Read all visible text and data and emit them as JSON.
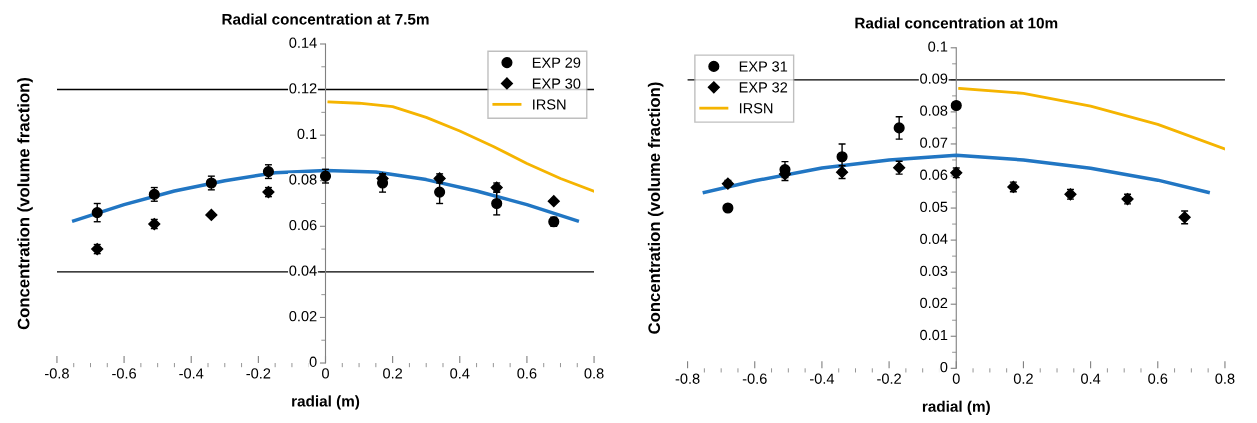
{
  "chart_data": [
    {
      "type": "scatter",
      "title": "Radial concentration at 7.5m",
      "xlabel": "radial (m)",
      "ylabel": "Concentration (volume fraction)",
      "xlim": [
        -0.8,
        0.8
      ],
      "ylim": [
        0,
        0.14
      ],
      "xticks": [
        -0.8,
        -0.6,
        -0.4,
        -0.2,
        0,
        0.2,
        0.4,
        0.6,
        0.8
      ],
      "yticks": [
        0,
        0.02,
        0.04,
        0.06,
        0.08,
        0.1,
        0.12,
        0.14
      ],
      "grid": false,
      "legend": "top right",
      "ref_lines": [
        {
          "axis": "y",
          "value": 0.12,
          "color": "#000000"
        },
        {
          "axis": "y",
          "value": 0.04,
          "color": "#000000"
        }
      ],
      "series": [
        {
          "type": "line",
          "color": "#2176c3",
          "x": [
            -0.75,
            -0.6,
            -0.45,
            -0.3,
            -0.15,
            0,
            0.15,
            0.3,
            0.45,
            0.6,
            0.75
          ],
          "values": [
            0.0624,
            0.0695,
            0.0755,
            0.08,
            0.0835,
            0.0845,
            0.0838,
            0.0805,
            0.0755,
            0.0695,
            0.0624
          ]
        },
        {
          "name": "EXP 29",
          "marker": "circle",
          "color": "#000000",
          "x": [
            -0.68,
            -0.51,
            -0.34,
            -0.17,
            0,
            0.17,
            0.34,
            0.51,
            0.68
          ],
          "values": [
            0.066,
            0.074,
            0.079,
            0.084,
            0.082,
            0.079,
            0.075,
            0.07,
            0.062
          ],
          "errors": [
            0.004,
            0.003,
            0.003,
            0.003,
            0.003,
            0.004,
            0.005,
            0.005,
            0.002
          ]
        },
        {
          "name": "EXP 30",
          "marker": "diamond",
          "color": "#000000",
          "x": [
            -0.68,
            -0.51,
            -0.34,
            -0.17,
            0,
            0.17,
            0.34,
            0.51,
            0.68
          ],
          "values": [
            0.05,
            0.061,
            0.065,
            0.075,
            null,
            0.081,
            0.081,
            0.077,
            0.071
          ],
          "errors": [
            0.002,
            0.002,
            null,
            0.002,
            null,
            0.002,
            0.002,
            0.002,
            null
          ]
        },
        {
          "type": "line",
          "name": "IRSN",
          "color": "#f5b400",
          "x": [
            0.01,
            0.1,
            0.2,
            0.3,
            0.4,
            0.5,
            0.6,
            0.7,
            0.8
          ],
          "values": [
            0.1146,
            0.114,
            0.1125,
            0.1078,
            0.1018,
            0.095,
            0.0876,
            0.081,
            0.0754
          ]
        }
      ]
    },
    {
      "type": "scatter",
      "title": "Radial concentration at 10m",
      "xlabel": "radial (m)",
      "ylabel": "Concentration (volume fraction)",
      "xlim": [
        -0.8,
        0.8
      ],
      "ylim": [
        0,
        0.1
      ],
      "xticks": [
        -0.8,
        -0.6,
        -0.4,
        -0.2,
        0,
        0.2,
        0.4,
        0.6,
        0.8
      ],
      "yticks": [
        0,
        0.01,
        0.02,
        0.03,
        0.04,
        0.05,
        0.06,
        0.07,
        0.08,
        0.09,
        0.1
      ],
      "grid": false,
      "legend": "top left",
      "ref_lines": [
        {
          "axis": "y",
          "value": 0.09,
          "color": "#000000"
        }
      ],
      "series": [
        {
          "type": "line",
          "color": "#2176c3",
          "x": [
            -0.75,
            -0.6,
            -0.4,
            -0.2,
            0,
            0.2,
            0.4,
            0.6,
            0.75
          ],
          "values": [
            0.0549,
            0.0585,
            0.0625,
            0.065,
            0.0665,
            0.065,
            0.0624,
            0.0587,
            0.0549
          ]
        },
        {
          "name": "EXP 31",
          "marker": "circle",
          "color": "#000000",
          "x": [
            -0.68,
            -0.51,
            -0.34,
            -0.17,
            0
          ],
          "values": [
            0.05,
            0.062,
            0.066,
            0.075,
            0.082
          ],
          "errors": [
            null,
            0.0025,
            0.004,
            0.0035,
            null
          ]
        },
        {
          "name": "EXP 32",
          "marker": "diamond",
          "color": "#000000",
          "x": [
            -0.68,
            -0.51,
            -0.34,
            -0.17,
            0,
            0.17,
            0.34,
            0.51,
            0.68
          ],
          "values": [
            0.0576,
            0.0606,
            0.0612,
            0.0626,
            0.061,
            0.0566,
            0.0543,
            0.0528,
            0.0471
          ],
          "errors": [
            0.001,
            0.002,
            0.002,
            0.002,
            0.0015,
            0.0015,
            0.0015,
            0.0015,
            0.002
          ]
        },
        {
          "type": "line",
          "name": "IRSN",
          "color": "#f5b400",
          "x": [
            0.01,
            0.2,
            0.4,
            0.6,
            0.8
          ],
          "values": [
            0.0873,
            0.0858,
            0.0818,
            0.0761,
            0.0684
          ]
        }
      ]
    }
  ]
}
